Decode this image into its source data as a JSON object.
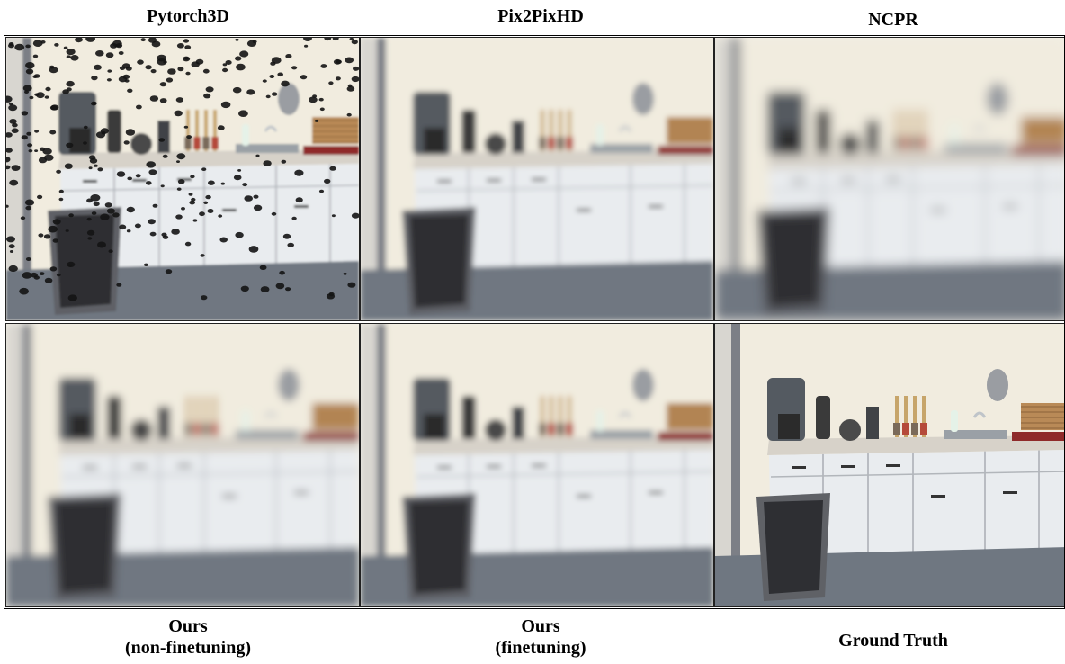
{
  "figure": {
    "columns_top": [
      "Pytorch3D",
      "Pix2PixHD",
      "NCPR"
    ],
    "columns_bottom": [
      {
        "line1": "Ours",
        "line2": "(non-finetuning)"
      },
      {
        "line1": "Ours",
        "line2": "(finetuning)"
      },
      {
        "line1": "Ground Truth",
        "line2": ""
      }
    ]
  },
  "panels": [
    {
      "id": "pytorch3d",
      "style": "holes"
    },
    {
      "id": "pix2pixhd",
      "style": "blurry-artifacts"
    },
    {
      "id": "ncpr",
      "style": "heavy-blur"
    },
    {
      "id": "ours-nonft",
      "style": "soft-blur"
    },
    {
      "id": "ours-ft",
      "style": "mild-blur"
    },
    {
      "id": "ground-truth",
      "style": "sharp"
    }
  ],
  "colors": {
    "wall": "#f1ecdf",
    "cabinet": "#e9ecef",
    "floor": "#6f7781",
    "countertop": "#d7d2c9",
    "dark": "#2b2b2b",
    "accent_red": "#8f2a2a",
    "wood": "#b98a57"
  }
}
